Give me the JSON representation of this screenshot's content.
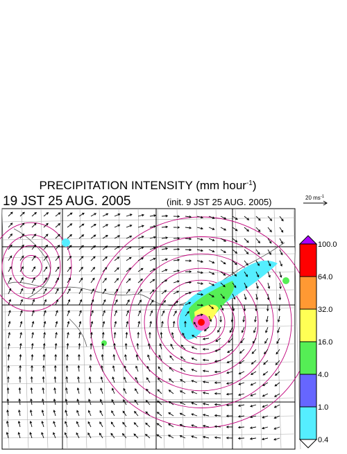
{
  "title": {
    "text": "PRECIPITATION INTENSITY (mm hour",
    "sup": "-1",
    "close": ")"
  },
  "time": "19 JST 25 AUG. 2005",
  "init": "(init. 9 JST 25 AUG. 2005)",
  "vector_scale": {
    "text": "20 ms",
    "sup": "-1"
  },
  "colorbar": {
    "labels": [
      "100.0",
      "64.0",
      "32.0",
      "16.0",
      "4.0",
      "1.0",
      "0.4"
    ],
    "colors": [
      "#ff0000",
      "#ff9933",
      "#ffff55",
      "#55ee55",
      "#6666ff",
      "#55eeff"
    ],
    "over_color": "#aa00ff",
    "under_color": "#ffffff"
  }
}
